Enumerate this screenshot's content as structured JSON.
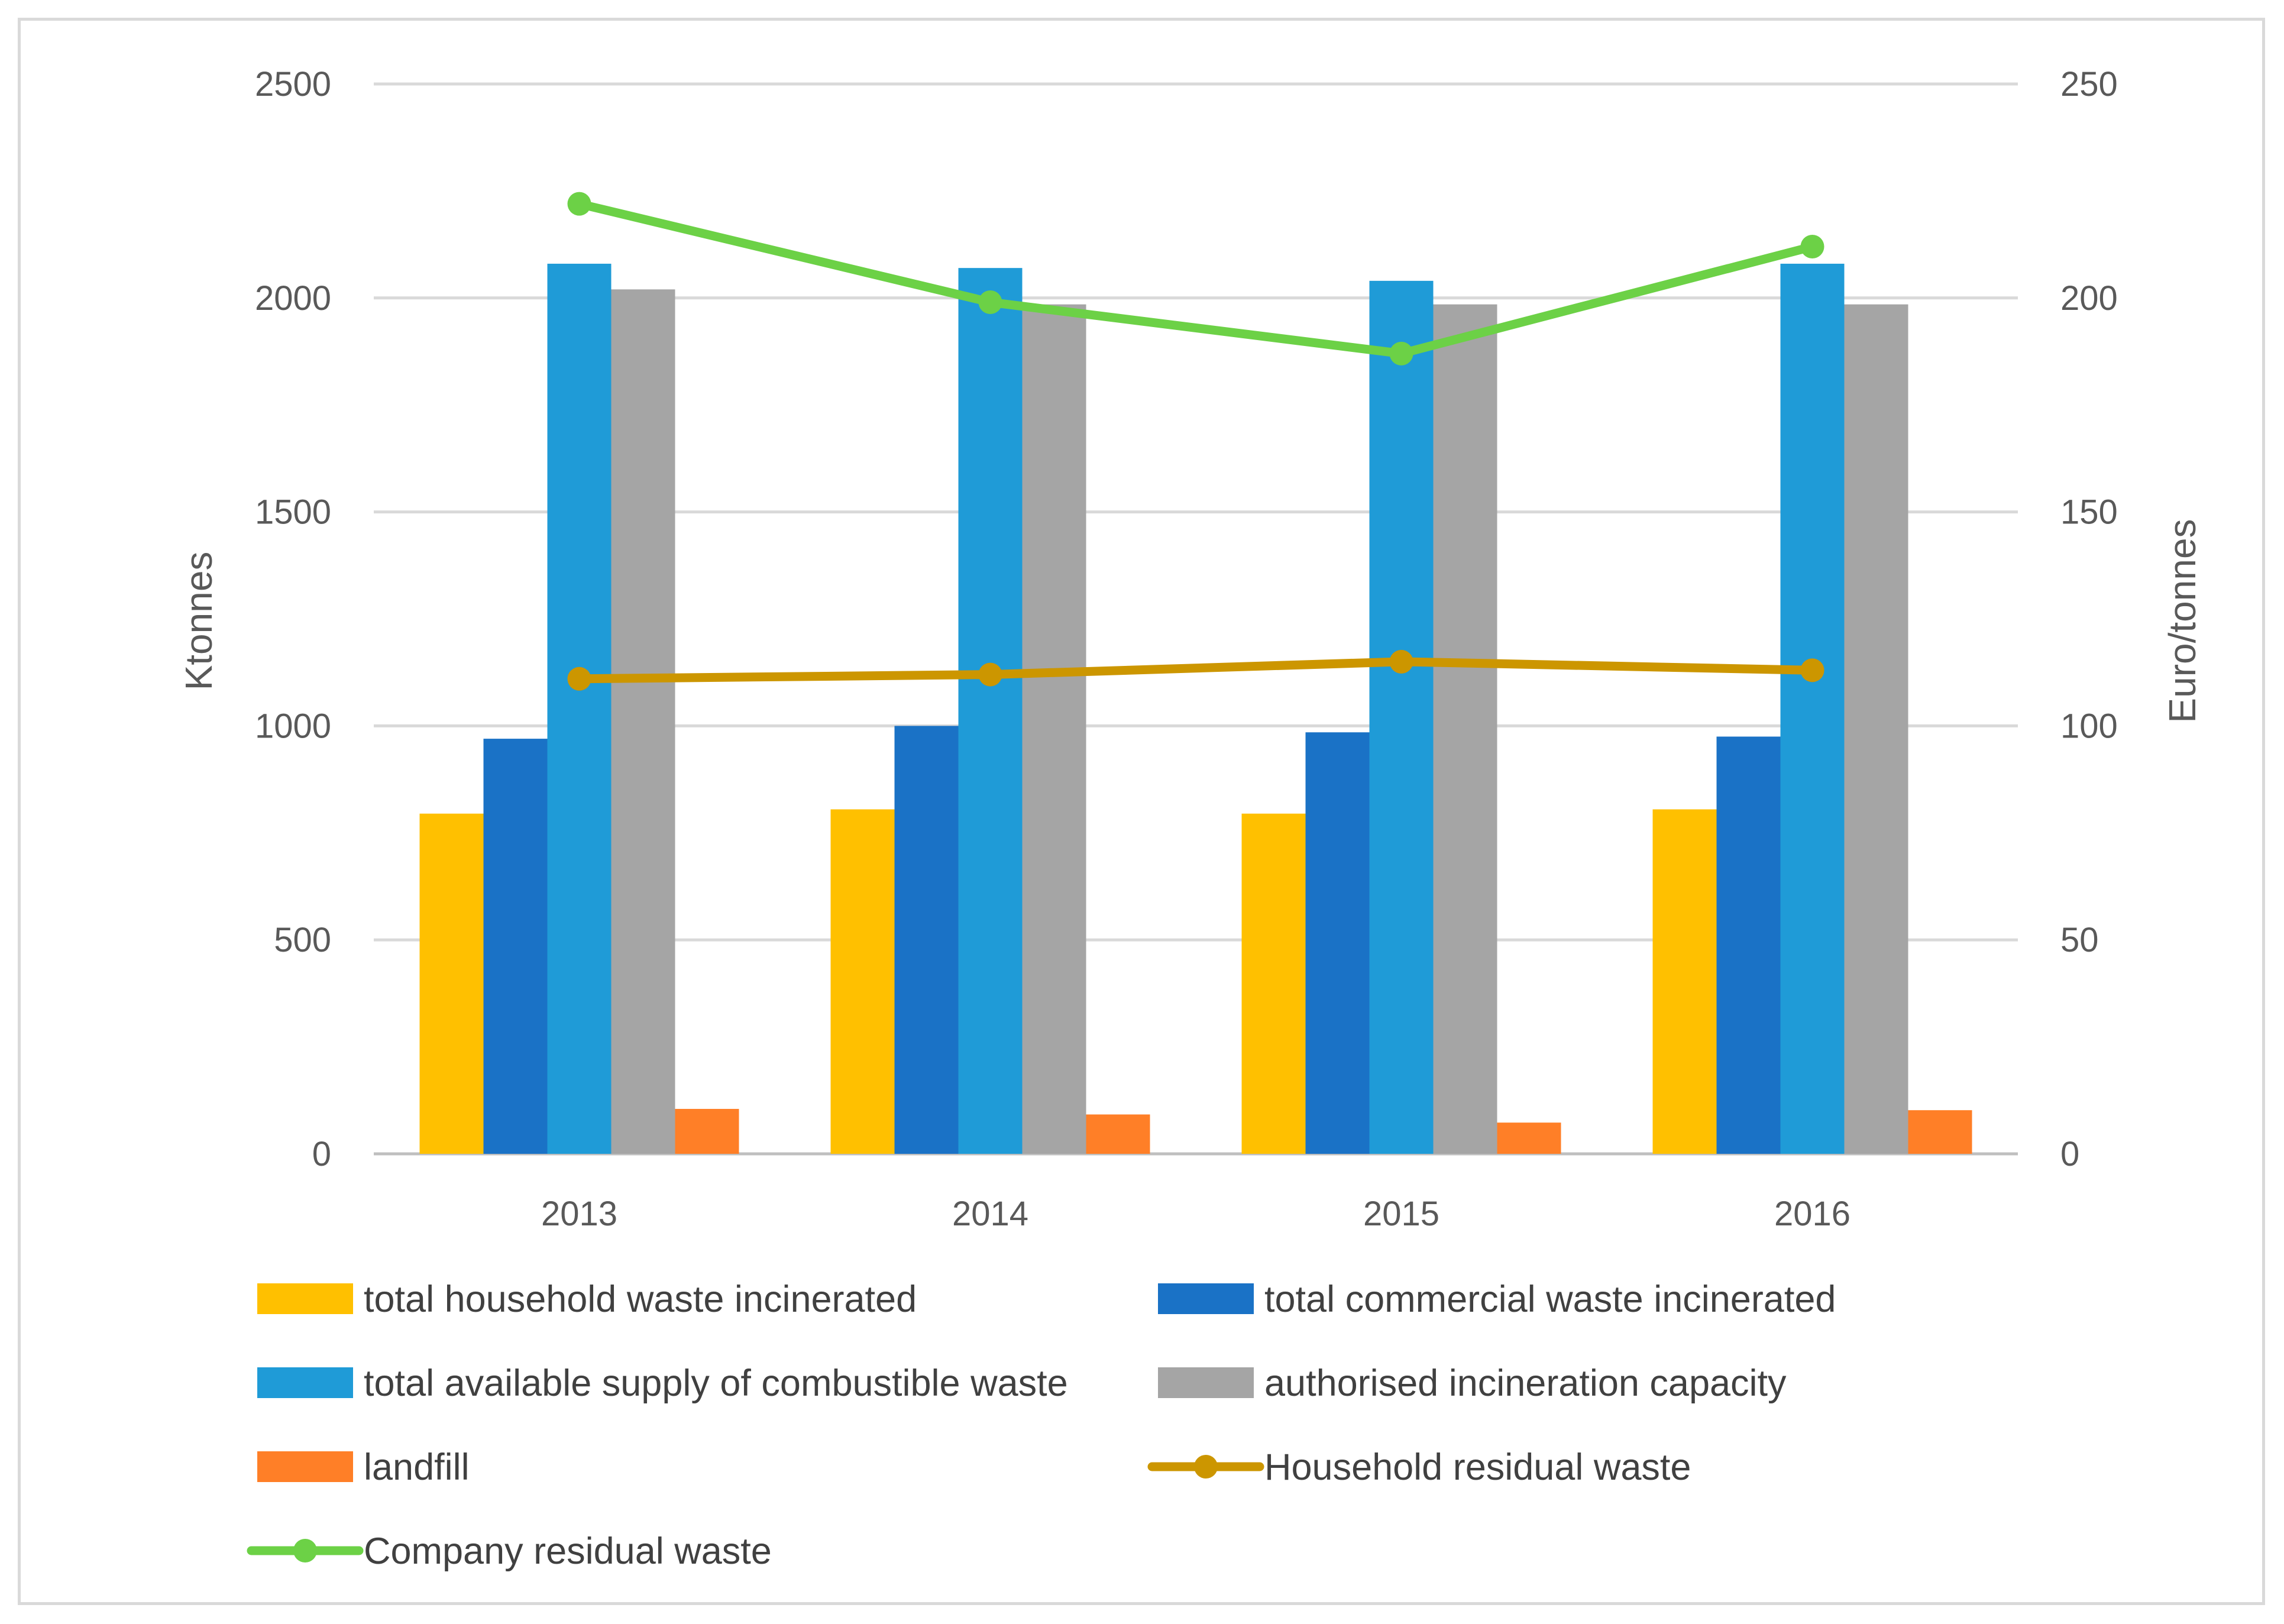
{
  "chart_data": {
    "type": "bar",
    "title": "",
    "categories": [
      "2013",
      "2014",
      "2015",
      "2016"
    ],
    "ylabel": "Ktonnes",
    "y2label": "Euro/tonnes",
    "ylim": [
      0,
      2500
    ],
    "y2lim": [
      0,
      250
    ],
    "yticks": [
      "0",
      "500",
      "1000",
      "1500",
      "2000",
      "2500"
    ],
    "y2ticks": [
      "0",
      "50",
      "100",
      "150",
      "200",
      "250"
    ],
    "grid": true,
    "legend_position": "bottom",
    "bar_series": [
      {
        "name": "total household waste incinerated",
        "color": "#FFC000",
        "values": [
          795,
          805,
          795,
          805
        ]
      },
      {
        "name": "total commercial waste incinerated",
        "color": "#1A72C6",
        "values": [
          970,
          1000,
          985,
          975
        ]
      },
      {
        "name": "total available supply of combustible waste",
        "color": "#1F9BD7",
        "values": [
          2080,
          2070,
          2040,
          2080
        ]
      },
      {
        "name": "authorised incineration capacity",
        "color": "#A5A5A5",
        "values": [
          2020,
          1985,
          1985,
          1985
        ]
      },
      {
        "name": "landfill",
        "color": "#FF7F27",
        "values": [
          105,
          92,
          73,
          102
        ]
      }
    ],
    "line_series": [
      {
        "name": "Household residual waste",
        "color": "#CC9600",
        "axis": "right",
        "values": [
          111,
          112,
          115,
          113
        ]
      },
      {
        "name": "Company residual waste",
        "color": "#6CD146",
        "axis": "right",
        "values": [
          222,
          199,
          187,
          212
        ]
      }
    ]
  }
}
